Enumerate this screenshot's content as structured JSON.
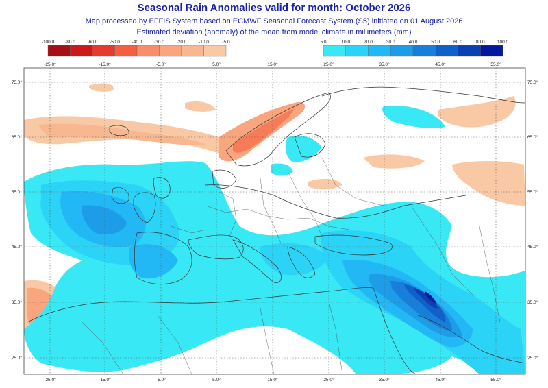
{
  "title": "Seasonal Rain Anomalies valid for month: October 2026",
  "subtitle1": "Map processed by EFFIS System based on ECMWF Seasonal Forecast System (S5) initiated on 01 August 2026",
  "subtitle2": "Estimated deviation (anomaly) of the mean from model climate in millimeters (mm)",
  "legend_dry": {
    "labels": [
      "-100.0",
      "-80.0",
      "-60.0",
      "-50.0",
      "-40.0",
      "-30.0",
      "-20.0",
      "-10.0",
      "-5.0"
    ],
    "colors": [
      "#a50f15",
      "#cb181d",
      "#e63a2e",
      "#f4603f",
      "#f88d6b",
      "#f9a57e",
      "#f7b891",
      "#f8c9a4"
    ]
  },
  "legend_wet": {
    "labels": [
      "5.0",
      "10.0",
      "20.0",
      "30.0",
      "40.0",
      "50.0",
      "60.0",
      "80.0",
      "100.0"
    ],
    "colors": [
      "#38e8f5",
      "#2bd3f6",
      "#22b8f5",
      "#1d9ce8",
      "#177ed9",
      "#1160c9",
      "#0b3fb4",
      "#04189b"
    ]
  },
  "longitudes_top": [
    "-25.0°",
    "-15.0°",
    "-5.0°",
    "5.0°",
    "15.0°",
    "25.0°",
    "35.0°",
    "45.0°",
    "55.0°"
  ],
  "longitudes_bottom": [
    "-25.0°",
    "-15.0°",
    "-5.0°",
    "5.0°",
    "15.0°",
    "25.0°",
    "35.0°",
    "45.0°",
    "55.0°"
  ],
  "latitudes_left": [
    "75.0°",
    "65.0°",
    "55.0°",
    "45.0°",
    "35.0°",
    "25.0°"
  ],
  "latitudes_right": [
    "75.0°",
    "65.0°",
    "55.0°",
    "45.0°",
    "35.0°",
    "25.0°"
  ],
  "colors": {
    "title": "#1a22b0",
    "land_line": "#333333",
    "grid": "#555555"
  }
}
